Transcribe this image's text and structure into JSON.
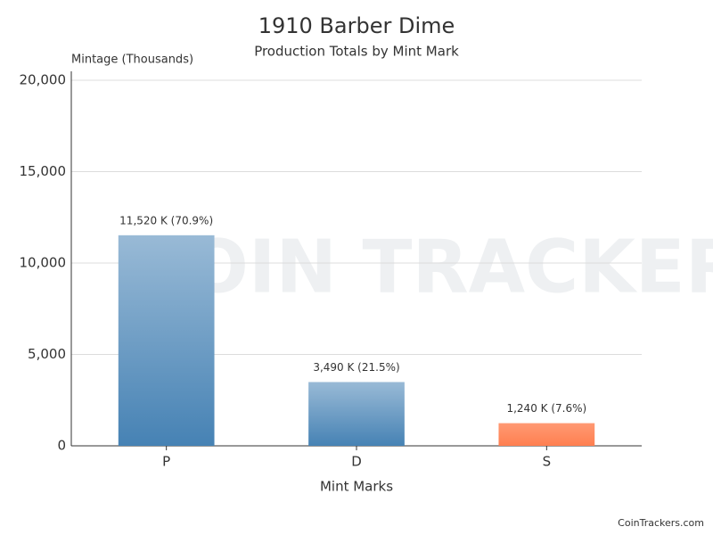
{
  "chart_data": {
    "type": "bar",
    "title": "1910 Barber Dime",
    "subtitle": "Production Totals by Mint Mark",
    "y_label": "Mintage (Thousands)",
    "x_label": "Mint Marks",
    "categories": [
      "P",
      "D",
      "S"
    ],
    "values": [
      11520,
      3490,
      1240
    ],
    "value_labels": [
      "11,520 K (70.9%)",
      "3,490 K (21.5%)",
      "1,240 K (7.6%)"
    ],
    "colors": [
      "#4682b4",
      "#4682b4",
      "#ff7f50"
    ],
    "ylim": [
      0,
      20000
    ],
    "yticks": [
      0,
      {
        "value": 5000,
        "label": "5,000"
      },
      {
        "value": 10000,
        "label": "10,000"
      },
      {
        "value": 15000,
        "label": "15,000"
      },
      {
        "value": 20000,
        "label": "20,000"
      }
    ],
    "grid": true,
    "watermark": "COIN TRACKERS",
    "credit": "CoinTrackers.com"
  }
}
